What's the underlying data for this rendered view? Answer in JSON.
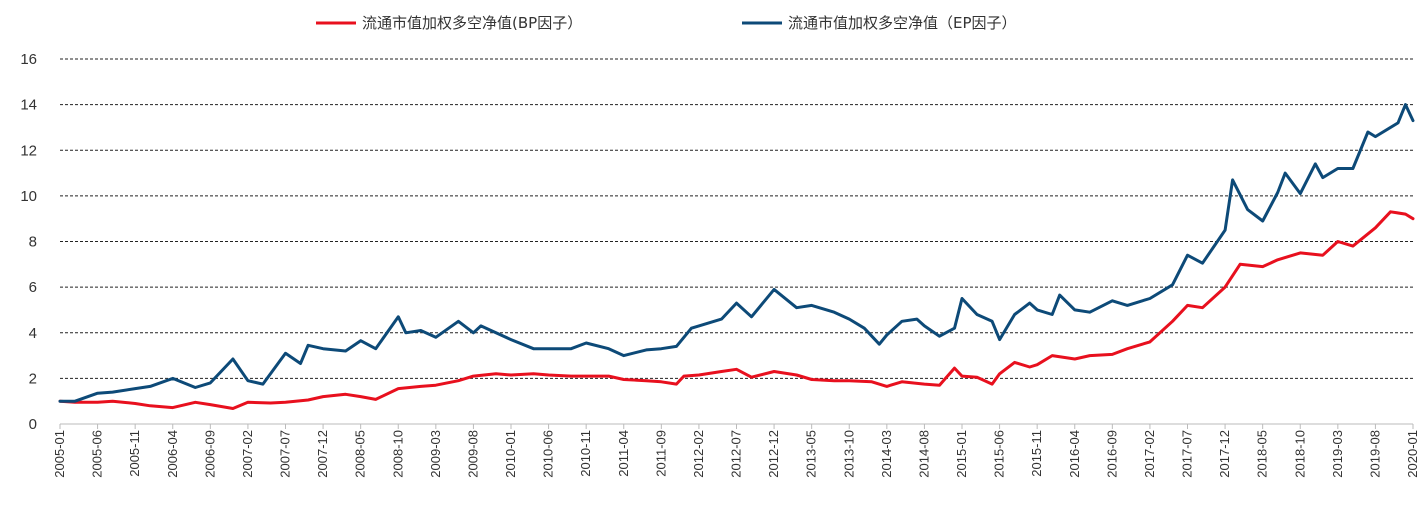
{
  "chart_data": {
    "type": "line",
    "title": "",
    "xlabel": "",
    "ylabel": "",
    "ylim": [
      0,
      16
    ],
    "yticks": [
      0,
      2,
      4,
      6,
      8,
      10,
      12,
      14,
      16
    ],
    "grid": "horizontal dashed",
    "legend_position": "top-center",
    "xtick_labels": [
      "2005-01",
      "2005-06",
      "2005-11",
      "2006-04",
      "2006-09",
      "2007-02",
      "2007-07",
      "2007-12",
      "2008-05",
      "2008-10",
      "2009-03",
      "2009-08",
      "2010-01",
      "2010-06",
      "2010-11",
      "2011-04",
      "2011-09",
      "2012-02",
      "2012-07",
      "2012-12",
      "2013-05",
      "2013-10",
      "2014-03",
      "2014-08",
      "2015-01",
      "2015-06",
      "2015-11",
      "2016-04",
      "2016-09",
      "2017-02",
      "2017-07",
      "2017-12",
      "2018-05",
      "2018-10",
      "2019-03",
      "2019-08",
      "2020-01"
    ],
    "series": [
      {
        "name": "流通市值加权多空净值(BP因子）",
        "color": "#e8101e",
        "points": [
          [
            "2005-01",
            1.0
          ],
          [
            "2005-03",
            0.95
          ],
          [
            "2005-06",
            0.95
          ],
          [
            "2005-08",
            1.0
          ],
          [
            "2005-11",
            0.9
          ],
          [
            "2006-01",
            0.8
          ],
          [
            "2006-04",
            0.72
          ],
          [
            "2006-07",
            0.95
          ],
          [
            "2006-09",
            0.85
          ],
          [
            "2006-12",
            0.68
          ],
          [
            "2007-02",
            0.95
          ],
          [
            "2007-05",
            0.92
          ],
          [
            "2007-07",
            0.95
          ],
          [
            "2007-10",
            1.05
          ],
          [
            "2007-12",
            1.2
          ],
          [
            "2008-03",
            1.3
          ],
          [
            "2008-05",
            1.2
          ],
          [
            "2008-07",
            1.08
          ],
          [
            "2008-10",
            1.55
          ],
          [
            "2009-01",
            1.65
          ],
          [
            "2009-03",
            1.7
          ],
          [
            "2009-06",
            1.9
          ],
          [
            "2009-08",
            2.1
          ],
          [
            "2009-11",
            2.2
          ],
          [
            "2010-01",
            2.15
          ],
          [
            "2010-04",
            2.2
          ],
          [
            "2010-06",
            2.15
          ],
          [
            "2010-09",
            2.1
          ],
          [
            "2010-11",
            2.1
          ],
          [
            "2011-02",
            2.1
          ],
          [
            "2011-04",
            1.95
          ],
          [
            "2011-07",
            1.9
          ],
          [
            "2011-09",
            1.85
          ],
          [
            "2011-11",
            1.75
          ],
          [
            "2011-12",
            2.1
          ],
          [
            "2012-02",
            2.15
          ],
          [
            "2012-05",
            2.3
          ],
          [
            "2012-07",
            2.4
          ],
          [
            "2012-09",
            2.05
          ],
          [
            "2012-12",
            2.3
          ],
          [
            "2013-03",
            2.15
          ],
          [
            "2013-05",
            1.95
          ],
          [
            "2013-08",
            1.9
          ],
          [
            "2013-10",
            1.9
          ],
          [
            "2014-01",
            1.85
          ],
          [
            "2014-03",
            1.65
          ],
          [
            "2014-05",
            1.85
          ],
          [
            "2014-08",
            1.75
          ],
          [
            "2014-10",
            1.7
          ],
          [
            "2014-12",
            2.45
          ],
          [
            "2015-01",
            2.1
          ],
          [
            "2015-03",
            2.05
          ],
          [
            "2015-05",
            1.75
          ],
          [
            "2015-06",
            2.2
          ],
          [
            "2015-08",
            2.7
          ],
          [
            "2015-10",
            2.5
          ],
          [
            "2015-11",
            2.6
          ],
          [
            "2016-01",
            3.0
          ],
          [
            "2016-04",
            2.85
          ],
          [
            "2016-06",
            3.0
          ],
          [
            "2016-09",
            3.05
          ],
          [
            "2016-11",
            3.3
          ],
          [
            "2017-02",
            3.6
          ],
          [
            "2017-05",
            4.5
          ],
          [
            "2017-07",
            5.2
          ],
          [
            "2017-09",
            5.1
          ],
          [
            "2017-12",
            6.0
          ],
          [
            "2018-02",
            7.0
          ],
          [
            "2018-05",
            6.9
          ],
          [
            "2018-07",
            7.2
          ],
          [
            "2018-10",
            7.5
          ],
          [
            "2019-01",
            7.4
          ],
          [
            "2019-03",
            8.0
          ],
          [
            "2019-05",
            7.8
          ],
          [
            "2019-08",
            8.6
          ],
          [
            "2019-10",
            9.3
          ],
          [
            "2019-12",
            9.2
          ],
          [
            "2020-01",
            9.0
          ]
        ]
      },
      {
        "name": "流通市值加权多空净值（EP因子）",
        "color": "#0d4a78",
        "points": [
          [
            "2005-01",
            1.0
          ],
          [
            "2005-03",
            1.0
          ],
          [
            "2005-06",
            1.35
          ],
          [
            "2005-08",
            1.4
          ],
          [
            "2005-11",
            1.55
          ],
          [
            "2006-01",
            1.65
          ],
          [
            "2006-04",
            2.0
          ],
          [
            "2006-07",
            1.6
          ],
          [
            "2006-09",
            1.8
          ],
          [
            "2006-12",
            2.85
          ],
          [
            "2007-02",
            1.9
          ],
          [
            "2007-04",
            1.75
          ],
          [
            "2007-07",
            3.1
          ],
          [
            "2007-09",
            2.65
          ],
          [
            "2007-10",
            3.45
          ],
          [
            "2007-12",
            3.3
          ],
          [
            "2008-03",
            3.2
          ],
          [
            "2008-05",
            3.65
          ],
          [
            "2008-07",
            3.3
          ],
          [
            "2008-10",
            4.7
          ],
          [
            "2008-11",
            4.0
          ],
          [
            "2009-01",
            4.1
          ],
          [
            "2009-03",
            3.8
          ],
          [
            "2009-06",
            4.5
          ],
          [
            "2009-08",
            4.0
          ],
          [
            "2009-09",
            4.3
          ],
          [
            "2010-01",
            3.7
          ],
          [
            "2010-04",
            3.3
          ],
          [
            "2010-06",
            3.3
          ],
          [
            "2010-09",
            3.3
          ],
          [
            "2010-11",
            3.55
          ],
          [
            "2011-02",
            3.3
          ],
          [
            "2011-04",
            3.0
          ],
          [
            "2011-07",
            3.25
          ],
          [
            "2011-09",
            3.3
          ],
          [
            "2011-11",
            3.4
          ],
          [
            "2012-01",
            4.2
          ],
          [
            "2012-02",
            4.3
          ],
          [
            "2012-05",
            4.6
          ],
          [
            "2012-07",
            5.3
          ],
          [
            "2012-09",
            4.7
          ],
          [
            "2012-12",
            5.9
          ],
          [
            "2013-03",
            5.1
          ],
          [
            "2013-05",
            5.2
          ],
          [
            "2013-08",
            4.9
          ],
          [
            "2013-10",
            4.6
          ],
          [
            "2013-12",
            4.2
          ],
          [
            "2014-02",
            3.5
          ],
          [
            "2014-03",
            3.9
          ],
          [
            "2014-05",
            4.5
          ],
          [
            "2014-07",
            4.6
          ],
          [
            "2014-08",
            4.3
          ],
          [
            "2014-10",
            3.85
          ],
          [
            "2014-12",
            4.2
          ],
          [
            "2015-01",
            5.5
          ],
          [
            "2015-03",
            4.8
          ],
          [
            "2015-05",
            4.5
          ],
          [
            "2015-06",
            3.7
          ],
          [
            "2015-08",
            4.8
          ],
          [
            "2015-10",
            5.3
          ],
          [
            "2015-11",
            5.0
          ],
          [
            "2016-01",
            4.8
          ],
          [
            "2016-02",
            5.65
          ],
          [
            "2016-04",
            5.0
          ],
          [
            "2016-06",
            4.9
          ],
          [
            "2016-09",
            5.4
          ],
          [
            "2016-11",
            5.2
          ],
          [
            "2017-02",
            5.5
          ],
          [
            "2017-05",
            6.1
          ],
          [
            "2017-07",
            7.4
          ],
          [
            "2017-09",
            7.05
          ],
          [
            "2017-12",
            8.5
          ],
          [
            "2018-01",
            10.7
          ],
          [
            "2018-03",
            9.4
          ],
          [
            "2018-05",
            8.9
          ],
          [
            "2018-07",
            10.15
          ],
          [
            "2018-08",
            11.0
          ],
          [
            "2018-10",
            10.1
          ],
          [
            "2018-12",
            11.4
          ],
          [
            "2019-01",
            10.8
          ],
          [
            "2019-03",
            11.2
          ],
          [
            "2019-05",
            11.2
          ],
          [
            "2019-07",
            12.8
          ],
          [
            "2019-08",
            12.6
          ],
          [
            "2019-11",
            13.2
          ],
          [
            "2019-12",
            14.0
          ],
          [
            "2020-01",
            13.3
          ]
        ]
      }
    ]
  }
}
